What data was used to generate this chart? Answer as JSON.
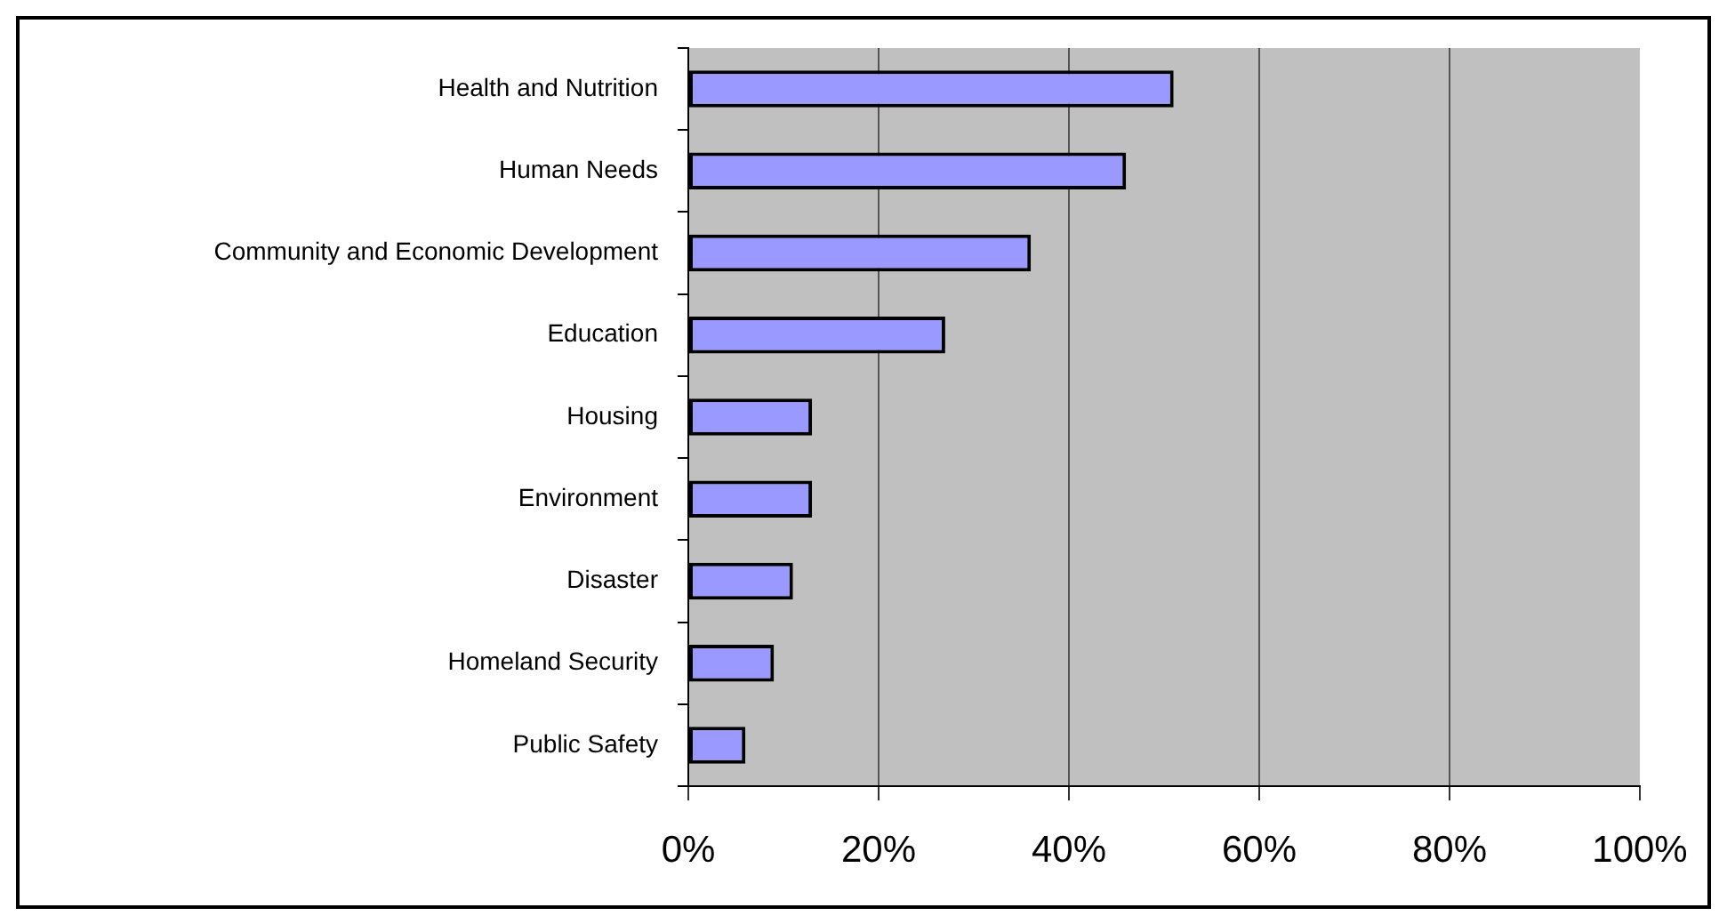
{
  "chart_data": {
    "type": "bar",
    "orientation": "horizontal",
    "categories": [
      "Health and Nutrition",
      "Human Needs",
      "Community and Economic Development",
      "Education",
      "Housing",
      "Environment",
      "Disaster",
      "Homeland Security",
      "Public Safety"
    ],
    "values": [
      51,
      46,
      36,
      27,
      13,
      13,
      11,
      9,
      6
    ],
    "color": "#9999ff",
    "xlim": [
      0,
      100
    ],
    "xticks": [
      {
        "value": 0,
        "label": "0%"
      },
      {
        "value": 20,
        "label": "20%"
      },
      {
        "value": 40,
        "label": "40%"
      },
      {
        "value": 60,
        "label": "60%"
      },
      {
        "value": 80,
        "label": "80%"
      },
      {
        "value": 100,
        "label": "100%"
      }
    ],
    "grid": "x"
  }
}
